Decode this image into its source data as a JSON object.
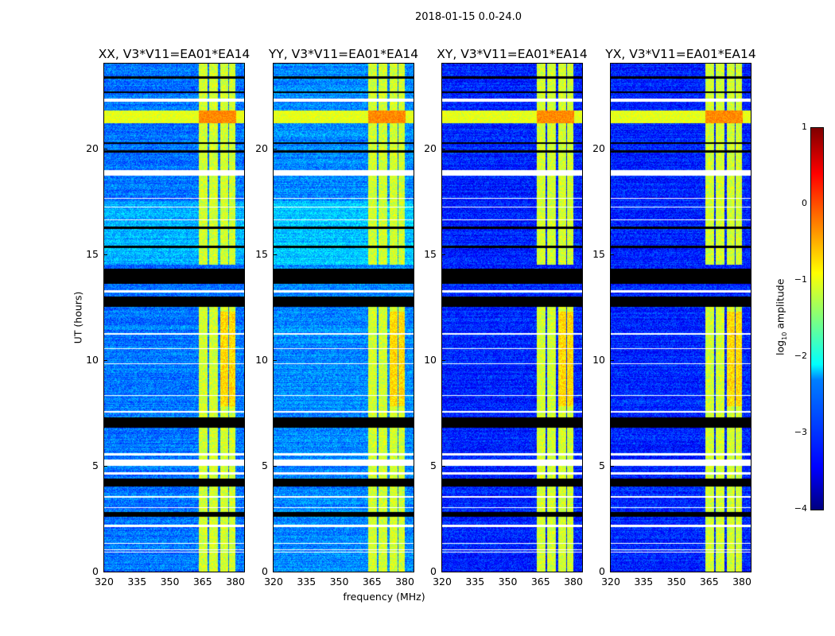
{
  "suptitle": "2018-01-15 0.0-24.0",
  "xlabel": "frequency (MHz)",
  "ylabel": "UT (hours)",
  "colorbar": {
    "label_prefix": "log",
    "label_sub": "10",
    "label_suffix": " amplitude",
    "ticks": [
      "1",
      "0",
      "−1",
      "−2",
      "−3",
      "−4"
    ],
    "range": [
      -4,
      1
    ],
    "colormap": "jet"
  },
  "chart_data": {
    "type": "heatmap",
    "title": "2018-01-15 0.0-24.0",
    "xlabel": "frequency (MHz)",
    "ylabel": "UT (hours)",
    "xlim": [
      320,
      384
    ],
    "ylim": [
      0,
      24
    ],
    "xticks": [
      "320",
      "335",
      "350",
      "365",
      "380"
    ],
    "yticks": [
      "0",
      "5",
      "10",
      "15",
      "20"
    ],
    "panels": [
      {
        "title": "XX, V3*V11=EA01*EA14",
        "background_log_amp": -2.8
      },
      {
        "title": "YY, V3*V11=EA01*EA14",
        "background_log_amp": -2.7
      },
      {
        "title": "XY, V3*V11=EA01*EA14",
        "background_log_amp": -3.2
      },
      {
        "title": "YX, V3*V11=EA01*EA14",
        "background_log_amp": -3.2
      }
    ],
    "rfi_channels_mhz": [
      [
        363,
        367
      ],
      [
        368,
        372
      ],
      [
        373,
        376.5
      ],
      [
        377,
        380
      ]
    ],
    "rfi_log_amp": -1.1,
    "strong_band_hours": [
      21.2,
      21.8
    ],
    "strong_band_log_amp": -0.3,
    "flagged_black_hours": [
      [
        13.6,
        14.3
      ],
      [
        12.5,
        13.0
      ],
      [
        6.8,
        7.3
      ],
      [
        4.0,
        4.4
      ],
      [
        2.6,
        2.8
      ],
      [
        23.3,
        23.4
      ],
      [
        22.6,
        22.7
      ],
      [
        20.2,
        20.3
      ],
      [
        19.8,
        19.9
      ],
      [
        16.2,
        16.3
      ],
      [
        15.3,
        15.4
      ]
    ],
    "flagged_white_hours": [
      [
        18.7,
        18.95
      ],
      [
        22.2,
        22.35
      ],
      [
        5.0,
        5.3
      ],
      [
        4.6,
        4.7
      ],
      [
        5.5,
        5.6
      ],
      [
        2.1,
        2.2
      ],
      [
        1.3,
        1.35
      ],
      [
        1.0,
        1.05
      ],
      [
        0.9,
        0.95
      ],
      [
        8.3,
        8.35
      ],
      [
        7.5,
        7.6
      ],
      [
        17.6,
        17.65
      ],
      [
        17.2,
        17.25
      ],
      [
        16.6,
        16.65
      ],
      [
        13.2,
        13.3
      ],
      [
        11.2,
        11.25
      ],
      [
        10.5,
        10.55
      ],
      [
        9.8,
        9.85
      ],
      [
        3.5,
        3.55
      ],
      [
        3.0,
        3.05
      ]
    ]
  }
}
